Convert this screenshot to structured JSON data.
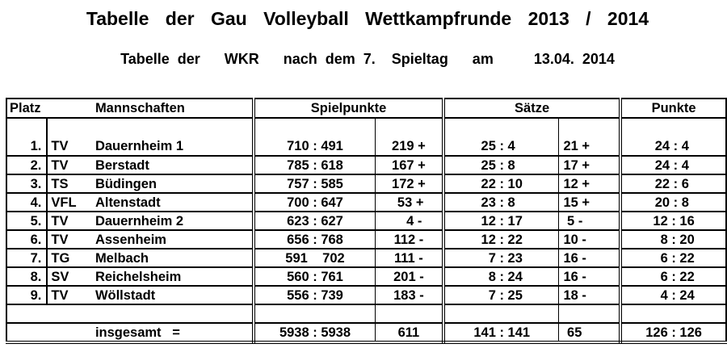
{
  "title": "Tabelle der Gau Volleyball Wettkampfrunde 2013 / 2014",
  "subtitle": "Tabelle der   WKR   nach dem 7.  Spieltag   am     13.04. 2014",
  "headers": {
    "platz": "Platz",
    "mannschaften": "Mannschaften",
    "spielpunkte": "Spielpunkte",
    "saetze": "Sätze",
    "punkte": "Punkte"
  },
  "rows": [
    {
      "platz": "1.",
      "verein": "TV",
      "name": "Dauernheim 1",
      "spielpunkte": "710 : 491",
      "sp_diff": "219 +",
      "saetze": "25 : 4  ",
      "s_diff": "21 +",
      "punkte": "24 : 4 "
    },
    {
      "platz": "2.",
      "verein": "TV",
      "name": "Berstadt",
      "spielpunkte": "785 : 618",
      "sp_diff": "167 +",
      "saetze": "25 : 8  ",
      "s_diff": "17 +",
      "punkte": "24 : 4 "
    },
    {
      "platz": "3.",
      "verein": "TS",
      "name": "Büdingen",
      "spielpunkte": "757 : 585",
      "sp_diff": "172 +",
      "saetze": "22 : 10",
      "s_diff": "12 +",
      "punkte": "22 : 6 "
    },
    {
      "platz": "4.",
      "verein": "VFL",
      "name": "Altenstadt",
      "spielpunkte": "700 : 647",
      "sp_diff": " 53 +",
      "saetze": "23 : 8  ",
      "s_diff": "15 +",
      "punkte": "20 : 8 "
    },
    {
      "platz": "5.",
      "verein": "TV",
      "name": "Dauernheim 2",
      "spielpunkte": "623 : 627",
      "sp_diff": "   4 -",
      "saetze": "12 : 17",
      "s_diff": " 5 -",
      "punkte": "12 : 16"
    },
    {
      "platz": "6.",
      "verein": "TV",
      "name": "Assenheim",
      "spielpunkte": "656 : 768",
      "sp_diff": "112 -",
      "saetze": "12 : 22",
      "s_diff": "10 -",
      "punkte": "  8 : 20"
    },
    {
      "platz": "7.",
      "verein": "TG",
      "name": "Melbach",
      "spielpunkte": "591    702",
      "sp_diff": "111 -",
      "saetze": "  7 : 23",
      "s_diff": "16 -",
      "punkte": "  6 : 22"
    },
    {
      "platz": "8.",
      "verein": "SV",
      "name": "Reichelsheim",
      "spielpunkte": "560 : 761",
      "sp_diff": "201 -",
      "saetze": "  8 : 24",
      "s_diff": "16 -",
      "punkte": "  6 : 22"
    },
    {
      "platz": "9.",
      "verein": "TV",
      "name": "Wöllstadt",
      "spielpunkte": "556 : 739",
      "sp_diff": "183 -",
      "saetze": "  7 : 25",
      "s_diff": "18 -",
      "punkte": "  4 : 24"
    }
  ],
  "total": {
    "label": "insgesamt   =",
    "spielpunkte": "5938 : 5938",
    "sp_diff": "611",
    "saetze": "141 : 141",
    "s_diff": " 65",
    "punkte": "126 : 126"
  }
}
